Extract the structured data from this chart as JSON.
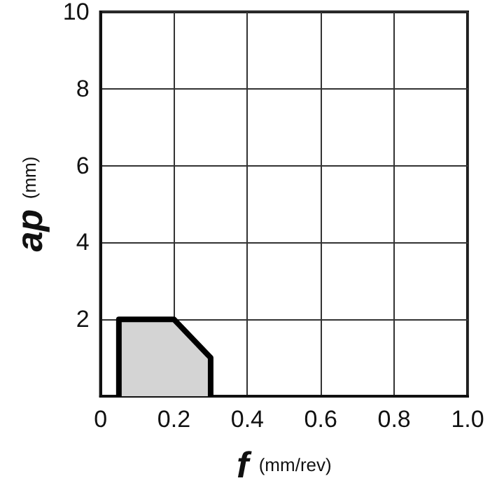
{
  "chart_data": {
    "type": "area",
    "xlabel": "f (mm/rev)",
    "ylabel": "ap (mm)",
    "series": [
      {
        "x": [
          0.05,
          0.05,
          0.2,
          0.3,
          0.3
        ],
        "values": [
          0,
          2,
          2,
          1,
          0
        ],
        "color": "#000000"
      }
    ],
    "xlim": [
      0,
      1.0
    ],
    "xticks": [
      0,
      0.2,
      0.4,
      0.6,
      0.8,
      {
        "value": 1.0,
        "label": "1.0"
      }
    ],
    "ylim": [
      0,
      10
    ],
    "yticks": [
      {
        "value": 0,
        "label": null
      },
      2,
      4,
      6,
      8,
      10
    ],
    "grid": true,
    "marker": "none",
    "line_style": "solid"
  }
}
